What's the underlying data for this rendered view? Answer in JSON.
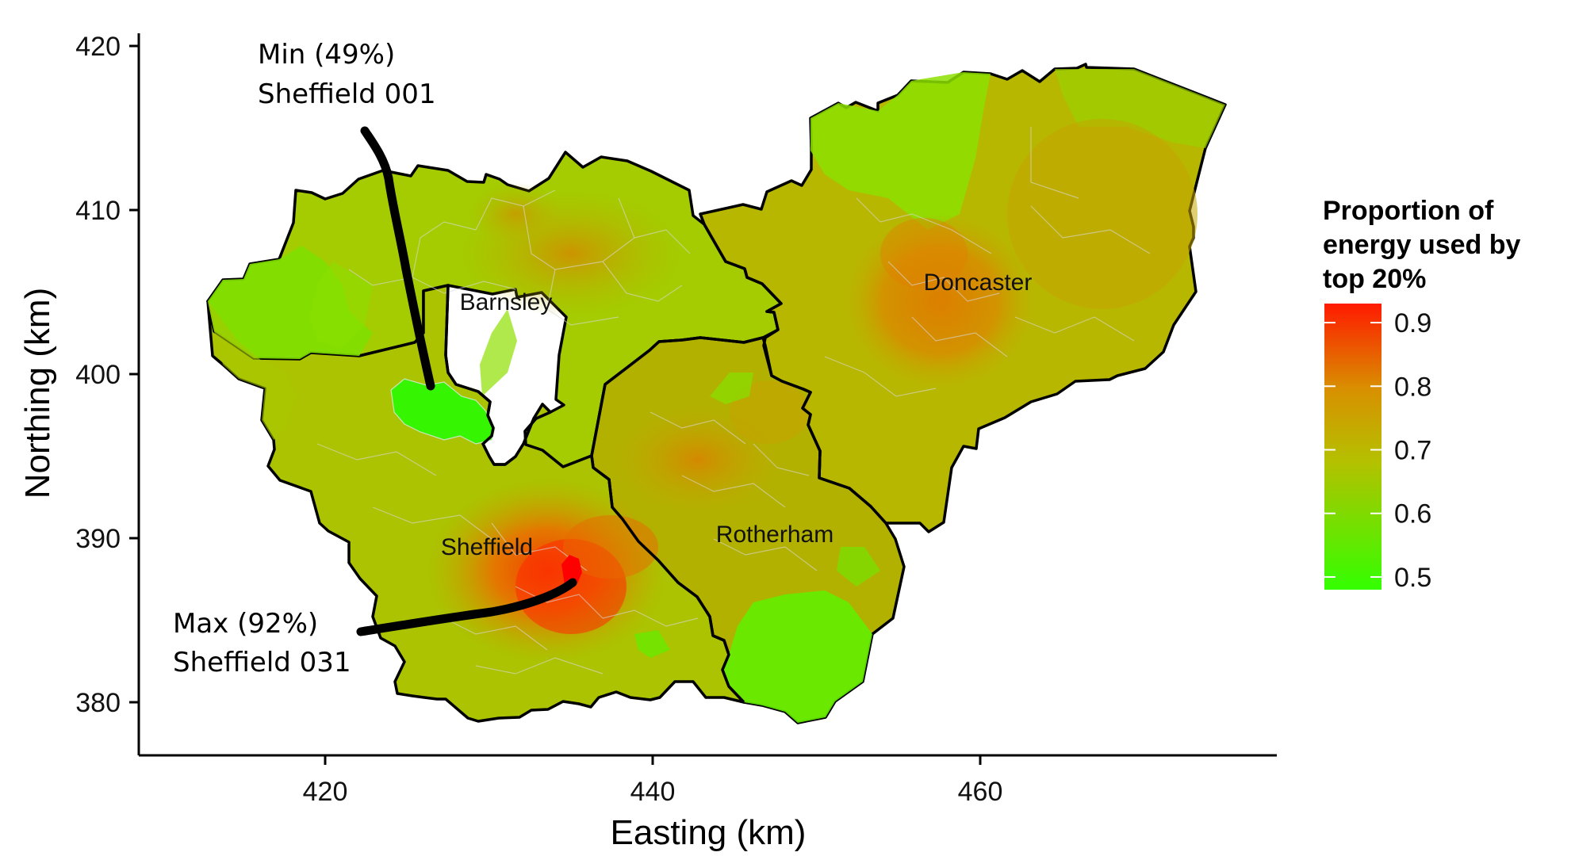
{
  "map": {
    "axes": {
      "x": {
        "title": "Easting (km)",
        "ticks": [
          "420",
          "440",
          "460"
        ]
      },
      "y": {
        "title": "Northing (km)",
        "ticks": [
          "380",
          "390",
          "400",
          "410",
          "420"
        ]
      }
    },
    "regions": [
      {
        "name": "Barnsley",
        "value": 0.62,
        "color": "#a4cc00"
      },
      {
        "name": "Doncaster",
        "value": 0.66,
        "color": "#b7b700"
      },
      {
        "name": "Rotherham",
        "value": 0.66,
        "color": "#b2b100"
      },
      {
        "name": "Sheffield",
        "value": 0.64,
        "color": "#abc300"
      }
    ],
    "highlights": [
      {
        "name": "Min area",
        "value": 0.49,
        "color": "#35f500"
      },
      {
        "name": "Max area",
        "value": 0.92,
        "color": "#ff0000"
      }
    ],
    "annotations": {
      "min": {
        "line1": "Min (49%)",
        "line2": "Sheffield 001"
      },
      "max": {
        "line1": "Max (92%)",
        "line2": "Sheffield 031"
      }
    },
    "legend": {
      "title_lines": [
        "Proportion of",
        "energy used by",
        "top 20%"
      ],
      "ticks": [
        "0.9",
        "0.8",
        "0.7",
        "0.6",
        "0.5"
      ],
      "scale_min": 0.48,
      "scale_max": 0.93,
      "color_low": "#33ff00",
      "color_mid": "#c8a800",
      "color_high": "#ff1a00"
    }
  }
}
